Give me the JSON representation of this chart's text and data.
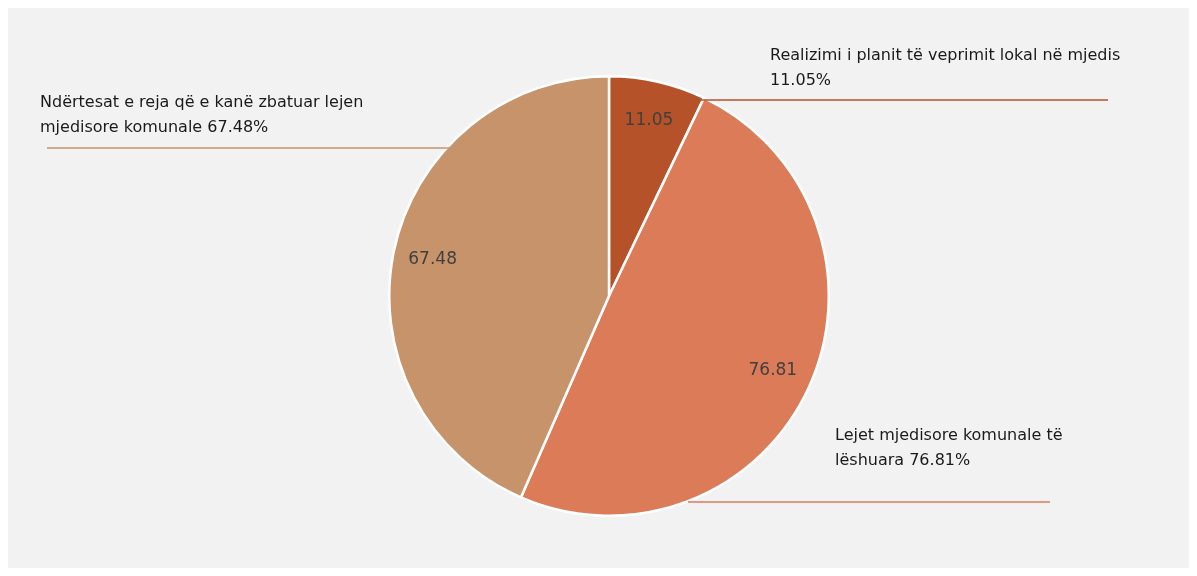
{
  "chart_data": {
    "type": "pie",
    "categories": [
      "Realizimi i planit të veprimit lokal në mjedis  11.05%",
      "Lejet mjedisore komunale të lëshuara 76.81%",
      "Ndërtesat e reja që e kanë zbatuar lejen mjedisore komunale 67.48%"
    ],
    "values": [
      11.05,
      76.81,
      67.48
    ],
    "colors": [
      "#b5522a",
      "#dc7b58",
      "#c6936b"
    ],
    "data_labels": true,
    "legend": false
  }
}
